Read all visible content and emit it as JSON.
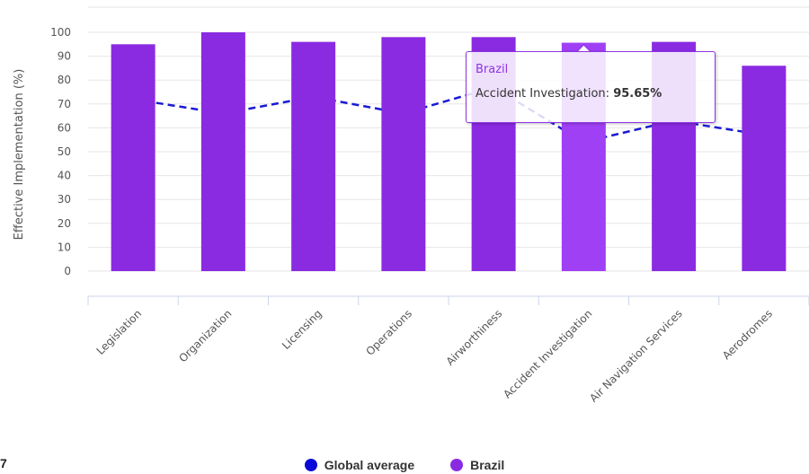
{
  "chart_data": {
    "type": "bar",
    "categories": [
      "Legislation",
      "Organization",
      "Licensing",
      "Operations",
      "Airworthiness",
      "Accident Investigation",
      "Air Navigation Services",
      "Aerodromes"
    ],
    "ylabel": "Effective Implementation (%)",
    "ylim": [
      0,
      100
    ],
    "yticks": [
      0,
      10,
      20,
      30,
      40,
      50,
      60,
      70,
      80,
      90,
      100
    ],
    "grid": true,
    "series": [
      {
        "name": "Brazil",
        "type": "bar",
        "color": "#8a2be2",
        "values": [
          95,
          100,
          96,
          98,
          98,
          95.65,
          96,
          86
        ]
      },
      {
        "name": "Global average",
        "type": "line",
        "style": "dashed",
        "color": "#1a1ad6",
        "values": [
          72,
          66,
          73,
          66,
          77,
          54,
          63,
          57
        ]
      }
    ],
    "highlight_index": 5,
    "highlight_color": "#a040f5",
    "legend_position": "bottom"
  },
  "tooltip": {
    "series_name": "Brazil",
    "label": "Accident Investigation:",
    "value": "95.65%"
  },
  "legend": {
    "items": [
      {
        "label": "Global average",
        "color": "#0a0ad8"
      },
      {
        "label": "Brazil",
        "color": "#8a2be2"
      }
    ]
  },
  "corner_text": "7"
}
